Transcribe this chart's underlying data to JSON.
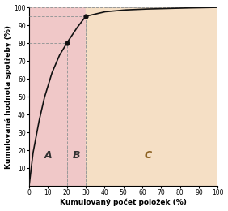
{
  "xlabel": "Kumulovaný počet položek (%)",
  "ylabel": "Kumulovaná hodnota spotřeby (%)",
  "xlim": [
    0,
    100
  ],
  "ylim": [
    0,
    100
  ],
  "xticks": [
    0,
    10,
    20,
    30,
    40,
    50,
    60,
    70,
    80,
    90,
    100
  ],
  "yticks": [
    10,
    20,
    30,
    40,
    50,
    60,
    70,
    80,
    90,
    100
  ],
  "curve_x": [
    0,
    2,
    5,
    8,
    12,
    16,
    20,
    25,
    30,
    40,
    50,
    60,
    70,
    80,
    90,
    100
  ],
  "curve_y": [
    0,
    18,
    35,
    49,
    63,
    73,
    80,
    88,
    95,
    97.5,
    98.5,
    99,
    99.3,
    99.6,
    99.8,
    100
  ],
  "point1": [
    20,
    80
  ],
  "point2": [
    30,
    95
  ],
  "label_A": "A",
  "label_B": "B",
  "label_C": "C",
  "color_A": "#f0c8c8",
  "color_B": "#f0c8c8",
  "color_C": "#f5dfc5",
  "dashed_color": "#999999",
  "curve_color": "#111111",
  "point_color": "#111111",
  "label_fontsize": 9,
  "axis_label_fontsize": 6.5,
  "tick_fontsize": 5.5,
  "label_color_AB": "#333333",
  "label_color_C": "#8B6020"
}
